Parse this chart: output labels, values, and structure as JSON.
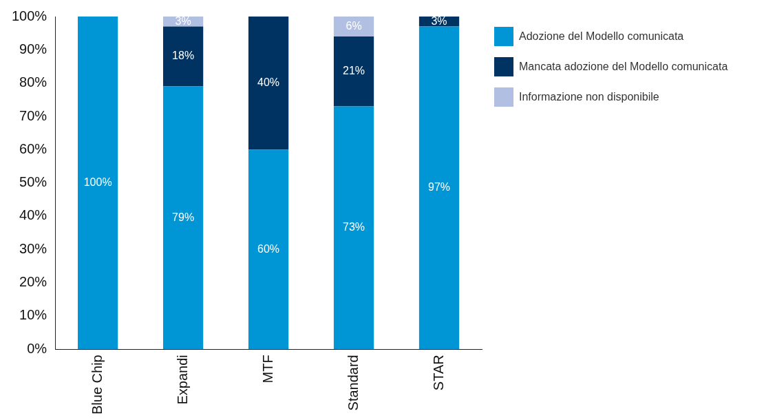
{
  "chart_data": {
    "type": "bar",
    "stacked": true,
    "categories": [
      "Blue Chip",
      "Expandi",
      "MTF",
      "Standard",
      "STAR"
    ],
    "series": [
      {
        "name": "Adozione del Modello comunicata",
        "color": "#0096d6",
        "values": [
          100,
          79,
          60,
          73,
          97
        ],
        "value_labels": [
          "100%",
          "79%",
          "60%",
          "73%",
          "97%"
        ]
      },
      {
        "name": "Mancata adozione del Modello comunicata",
        "color": "#003361",
        "values": [
          0,
          18,
          40,
          21,
          3
        ],
        "value_labels": [
          null,
          "18%",
          "40%",
          "21%",
          "3%"
        ]
      },
      {
        "name": "Informazione non disponibile",
        "color": "#b1bfe2",
        "values": [
          0,
          3,
          0,
          6,
          0
        ],
        "value_labels": [
          null,
          "3%",
          null,
          "6%",
          null
        ]
      }
    ],
    "ylim": [
      0,
      100
    ],
    "yticks": [
      {
        "value": 0,
        "label": "0%"
      },
      {
        "value": 10,
        "label": "10%"
      },
      {
        "value": 20,
        "label": "20%"
      },
      {
        "value": 30,
        "label": "30%"
      },
      {
        "value": 40,
        "label": "40%"
      },
      {
        "value": 50,
        "label": "50%"
      },
      {
        "value": 60,
        "label": "60%"
      },
      {
        "value": 70,
        "label": "70%"
      },
      {
        "value": 80,
        "label": "80%"
      },
      {
        "value": 90,
        "label": "90%"
      },
      {
        "value": 100,
        "label": "100%"
      }
    ],
    "grid": false,
    "legend": "top right"
  }
}
